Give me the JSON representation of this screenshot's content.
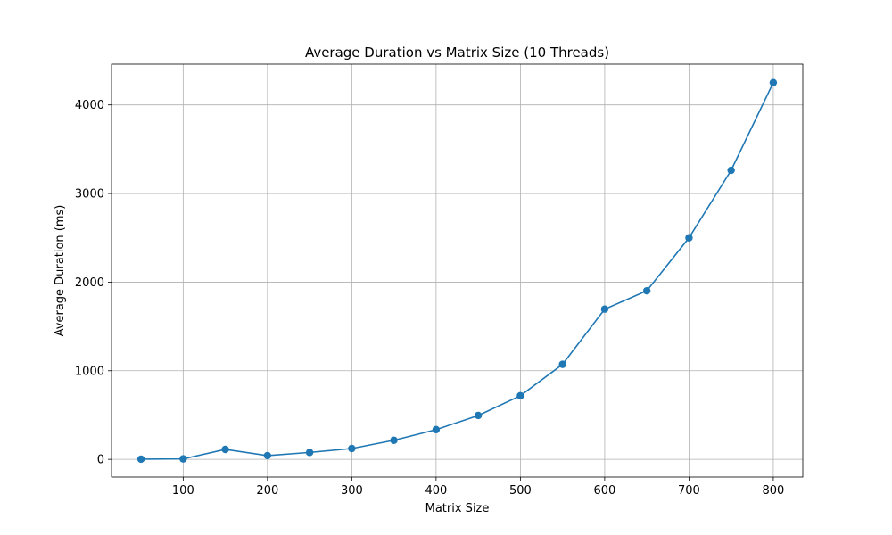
{
  "chart_data": {
    "type": "line",
    "title": "Average Duration vs Matrix Size (10 Threads)",
    "xlabel": "Matrix Size",
    "ylabel": "Average Duration (ms)",
    "xlim": [
      15,
      835
    ],
    "ylim": [
      -200,
      4460
    ],
    "xticks": [
      100,
      200,
      300,
      400,
      500,
      600,
      700,
      800
    ],
    "yticks": [
      0,
      1000,
      2000,
      3000,
      4000
    ],
    "grid": true,
    "colors": {
      "series": "#1f77b4"
    },
    "series": [
      {
        "marker": "circle",
        "x": [
          50,
          100,
          150,
          200,
          250,
          300,
          350,
          400,
          450,
          500,
          550,
          600,
          650,
          700,
          750,
          800
        ],
        "y": [
          2,
          5,
          112,
          42,
          78,
          122,
          215,
          335,
          495,
          718,
          1072,
          1695,
          1902,
          2500,
          3262,
          4252
        ]
      }
    ]
  }
}
